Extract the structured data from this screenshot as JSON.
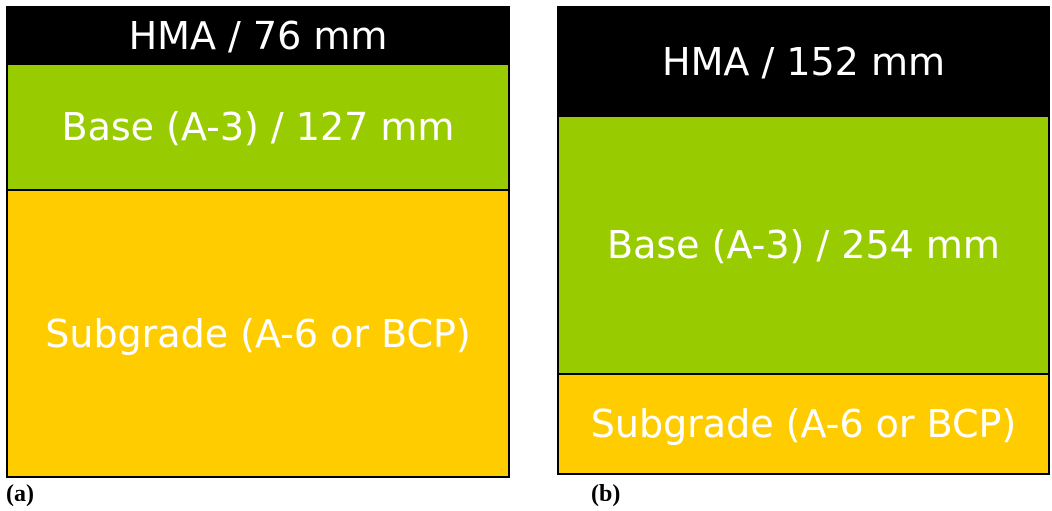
{
  "colors": {
    "hma": "#000000",
    "base": "#99cc00",
    "subgrade": "#ffcc00",
    "label_text": "#ffffff"
  },
  "panels": [
    {
      "caption": "(a)",
      "layers": [
        {
          "label": "HMA / 76 mm",
          "material": "HMA",
          "thickness_mm": 76
        },
        {
          "label": "Base (A-3) / 127 mm",
          "material": "Base (A-3)",
          "thickness_mm": 127
        },
        {
          "label": "Subgrade (A-6 or BCP)",
          "material": "Subgrade (A-6 or BCP)"
        }
      ]
    },
    {
      "caption": "(b)",
      "layers": [
        {
          "label": "HMA / 152 mm",
          "material": "HMA",
          "thickness_mm": 152
        },
        {
          "label": "Base (A-3) / 254 mm",
          "material": "Base (A-3)",
          "thickness_mm": 254
        },
        {
          "label": "Subgrade (A-6 or BCP)",
          "material": "Subgrade (A-6 or BCP)"
        }
      ]
    }
  ]
}
